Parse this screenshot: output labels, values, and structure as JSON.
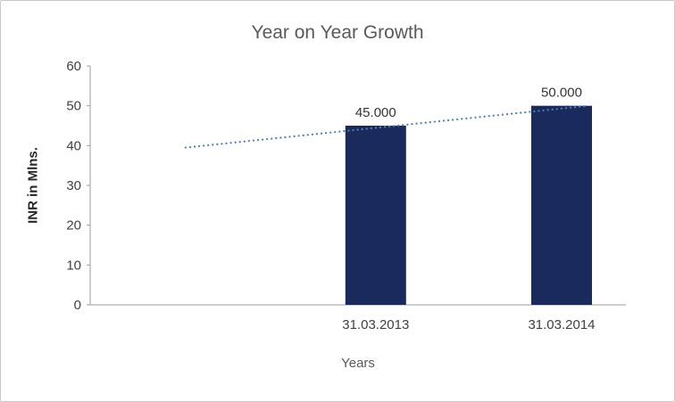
{
  "chart_data": {
    "type": "bar",
    "title": "Year on Year Growth",
    "categories": [
      "31.03.2013",
      "31.03.2014"
    ],
    "values": [
      45,
      50
    ],
    "data_labels": [
      "45.000",
      "50.000"
    ],
    "xlabel": "Years",
    "ylabel": "INR in Mlns.",
    "ylim": [
      0,
      60
    ],
    "ytick_interval": 10,
    "ytick_labels": [
      "0",
      "10",
      "20",
      "30",
      "40",
      "50",
      "60"
    ],
    "grid": false,
    "legend": "none",
    "trendline": {
      "type": "linear",
      "style": "dotted",
      "start_value": 39.5,
      "end_value": 50
    },
    "colors": {
      "bar": "#1a2a5c",
      "trendline": "#4f81bd",
      "title_text": "#595959",
      "axis_text": "#404040",
      "axis_line": "#9e9e9e",
      "data_label_text": "#333333"
    }
  }
}
